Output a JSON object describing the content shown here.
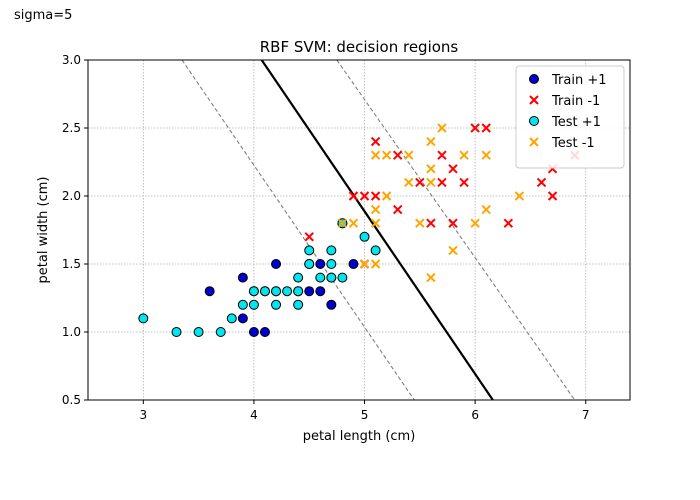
{
  "figure": {
    "annotation": "sigma=5"
  },
  "chart_data": {
    "type": "scatter",
    "title": "RBF SVM: decision regions",
    "xlabel": "petal length (cm)",
    "ylabel": "petal width (cm)",
    "xlim": [
      2.5,
      7.4
    ],
    "ylim": [
      0.5,
      3.0
    ],
    "xticks": [
      3,
      4,
      5,
      6,
      7
    ],
    "yticks": [
      0.5,
      1.0,
      1.5,
      2.0,
      2.5,
      3.0
    ],
    "grid": true,
    "legend_position": "top-right",
    "decision_boundary": {
      "style": "solid",
      "color": "#000000",
      "points": [
        [
          4.07,
          3.0
        ],
        [
          6.16,
          0.5
        ]
      ]
    },
    "margin_lines": [
      {
        "style": "dashed",
        "color": "#808080",
        "points": [
          [
            3.35,
            3.0
          ],
          [
            5.45,
            0.5
          ]
        ]
      },
      {
        "style": "dashed",
        "color": "#808080",
        "points": [
          [
            4.75,
            3.0
          ],
          [
            6.9,
            0.5
          ]
        ]
      }
    ],
    "series": [
      {
        "name": "Train +1",
        "marker": "circle",
        "color": "#0000cd",
        "points": [
          [
            3.6,
            1.3
          ],
          [
            3.9,
            1.4
          ],
          [
            3.9,
            1.1
          ],
          [
            4.0,
            1.0
          ],
          [
            4.0,
            1.3
          ],
          [
            4.1,
            1.0
          ],
          [
            4.1,
            1.3
          ],
          [
            4.2,
            1.5
          ],
          [
            4.2,
            1.3
          ],
          [
            4.4,
            1.3
          ],
          [
            4.5,
            1.5
          ],
          [
            4.5,
            1.3
          ],
          [
            4.6,
            1.5
          ],
          [
            4.6,
            1.3
          ],
          [
            4.7,
            1.4
          ],
          [
            4.7,
            1.2
          ],
          [
            4.8,
            1.8
          ],
          [
            4.9,
            1.5
          ]
        ]
      },
      {
        "name": "Train -1",
        "marker": "x",
        "color": "#ff0000",
        "points": [
          [
            4.5,
            1.7
          ],
          [
            4.9,
            2.0
          ],
          [
            5.0,
            2.0
          ],
          [
            5.0,
            1.5
          ],
          [
            5.1,
            2.4
          ],
          [
            5.1,
            2.0
          ],
          [
            5.3,
            2.3
          ],
          [
            5.3,
            1.9
          ],
          [
            5.5,
            2.1
          ],
          [
            5.6,
            1.8
          ],
          [
            5.7,
            2.3
          ],
          [
            5.7,
            2.1
          ],
          [
            5.8,
            2.2
          ],
          [
            5.8,
            1.8
          ],
          [
            5.9,
            2.1
          ],
          [
            6.0,
            2.5
          ],
          [
            6.1,
            2.5
          ],
          [
            6.3,
            1.8
          ],
          [
            6.6,
            2.1
          ],
          [
            6.7,
            2.2
          ],
          [
            6.7,
            2.0
          ],
          [
            6.9,
            2.3
          ]
        ]
      },
      {
        "name": "Test +1",
        "marker": "circle",
        "color": "#00e5ee",
        "points": [
          [
            3.0,
            1.1
          ],
          [
            3.3,
            1.0
          ],
          [
            3.5,
            1.0
          ],
          [
            3.7,
            1.0
          ],
          [
            3.8,
            1.1
          ],
          [
            3.9,
            1.2
          ],
          [
            4.0,
            1.2
          ],
          [
            4.0,
            1.3
          ],
          [
            4.1,
            1.3
          ],
          [
            4.2,
            1.2
          ],
          [
            4.2,
            1.3
          ],
          [
            4.3,
            1.3
          ],
          [
            4.4,
            1.4
          ],
          [
            4.4,
            1.3
          ],
          [
            4.4,
            1.2
          ],
          [
            4.5,
            1.6
          ],
          [
            4.5,
            1.5
          ],
          [
            4.6,
            1.4
          ],
          [
            4.7,
            1.6
          ],
          [
            4.7,
            1.5
          ],
          [
            4.7,
            1.4
          ],
          [
            4.8,
            1.4
          ],
          [
            4.8,
            1.8
          ],
          [
            5.0,
            1.7
          ],
          [
            5.1,
            1.6
          ]
        ]
      },
      {
        "name": "Test -1",
        "marker": "x",
        "color": "#ffa500",
        "points": [
          [
            4.8,
            1.8
          ],
          [
            4.9,
            1.8
          ],
          [
            5.0,
            1.5
          ],
          [
            5.1,
            2.3
          ],
          [
            5.1,
            1.9
          ],
          [
            5.1,
            1.8
          ],
          [
            5.1,
            1.5
          ],
          [
            5.2,
            2.3
          ],
          [
            5.2,
            2.0
          ],
          [
            5.4,
            2.3
          ],
          [
            5.4,
            2.1
          ],
          [
            5.5,
            1.8
          ],
          [
            5.6,
            2.4
          ],
          [
            5.6,
            2.2
          ],
          [
            5.6,
            2.1
          ],
          [
            5.6,
            1.4
          ],
          [
            5.7,
            2.5
          ],
          [
            5.8,
            1.6
          ],
          [
            5.9,
            2.3
          ],
          [
            6.0,
            1.8
          ],
          [
            6.1,
            2.3
          ],
          [
            6.1,
            1.9
          ],
          [
            6.4,
            2.0
          ]
        ]
      }
    ]
  }
}
